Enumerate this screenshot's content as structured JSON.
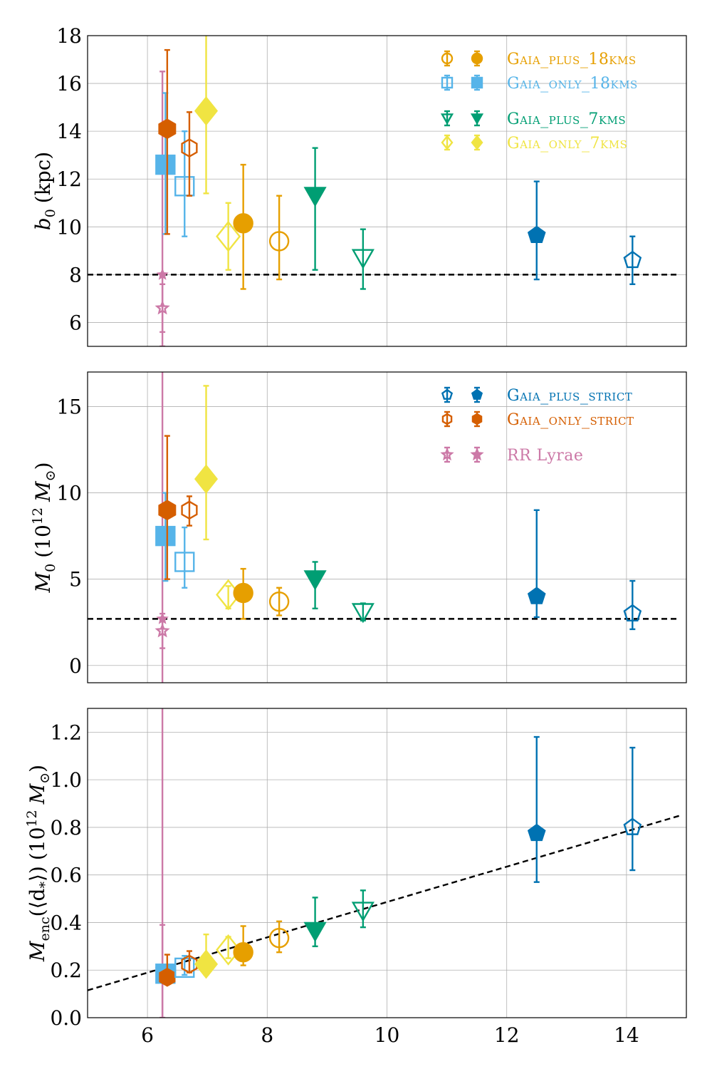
{
  "chart_data": [
    {
      "type": "scatter",
      "panel": "top",
      "ylabel_main": "b",
      "ylabel_sub": "0",
      "ylabel_unit": "(kpc)",
      "xlim": [
        5,
        15
      ],
      "ylim": [
        5,
        18
      ],
      "yticks": [
        6,
        8,
        10,
        12,
        14,
        16,
        18
      ],
      "reference_line": 8,
      "legend": [
        {
          "name": "GAIA_PLUS_18KMS",
          "label": "Gaia_plus_18kms",
          "color": "#E69F00",
          "marker": "circle"
        },
        {
          "name": "GAIA_ONLY_18KMS",
          "label": "Gaia_only_18kms",
          "color": "#56B4E9",
          "marker": "square"
        },
        {
          "name": "GAIA_PLUS_7KMS",
          "label": "Gaia_plus_7kms",
          "color": "#009E73",
          "marker": "triangle-down"
        },
        {
          "name": "GAIA_ONLY_7KMS",
          "label": "Gaia_only_7kms",
          "color": "#F0E442",
          "marker": "diamond"
        }
      ],
      "points": [
        {
          "series": "RR Lyrae",
          "filled": true,
          "marker": "star",
          "color": "#CC79A7",
          "x": 6.25,
          "y": 8.0,
          "lo": 5.0,
          "hi": 16.5,
          "size": 6
        },
        {
          "series": "RR Lyrae",
          "filled": false,
          "marker": "star",
          "color": "#CC79A7",
          "x": 6.25,
          "y": 6.6,
          "lo": 5.6,
          "hi": 7.6,
          "size": 8
        },
        {
          "series": "GAIA_ONLY_18KMS",
          "filled": true,
          "marker": "square",
          "color": "#56B4E9",
          "x": 6.3,
          "y": 12.6,
          "lo": 9.7,
          "hi": 15.6,
          "size": 13
        },
        {
          "series": "GAIA_ONLY_STRICT",
          "filled": true,
          "marker": "hexagon",
          "color": "#D55E00",
          "x": 6.33,
          "y": 14.1,
          "lo": 9.7,
          "hi": 17.4,
          "size": 13
        },
        {
          "series": "GAIA_ONLY_18KMS",
          "filled": false,
          "marker": "square",
          "color": "#56B4E9",
          "x": 6.62,
          "y": 11.7,
          "lo": 9.6,
          "hi": 14.0,
          "size": 13
        },
        {
          "series": "GAIA_ONLY_STRICT",
          "filled": false,
          "marker": "hexagon",
          "color": "#D55E00",
          "x": 6.7,
          "y": 13.3,
          "lo": 11.3,
          "hi": 14.8,
          "size": 12
        },
        {
          "series": "GAIA_ONLY_7KMS",
          "filled": true,
          "marker": "diamond",
          "color": "#F0E442",
          "x": 6.98,
          "y": 14.85,
          "lo": 11.4,
          "hi": 18.5,
          "size": 15
        },
        {
          "series": "GAIA_ONLY_7KMS",
          "filled": false,
          "marker": "diamond",
          "color": "#F0E442",
          "x": 7.35,
          "y": 9.6,
          "lo": 8.2,
          "hi": 11.0,
          "size": 16
        },
        {
          "series": "GAIA_PLUS_18KMS",
          "filled": true,
          "marker": "circle",
          "color": "#E69F00",
          "x": 7.6,
          "y": 10.15,
          "lo": 7.4,
          "hi": 12.6,
          "size": 13
        },
        {
          "series": "GAIA_PLUS_18KMS",
          "filled": false,
          "marker": "circle",
          "color": "#E69F00",
          "x": 8.2,
          "y": 9.4,
          "lo": 7.8,
          "hi": 11.3,
          "size": 13
        },
        {
          "series": "GAIA_PLUS_7KMS",
          "filled": true,
          "marker": "triangle-down",
          "color": "#009E73",
          "x": 8.8,
          "y": 11.3,
          "lo": 8.2,
          "hi": 13.3,
          "size": 14
        },
        {
          "series": "GAIA_PLUS_7KMS",
          "filled": false,
          "marker": "triangle-down",
          "color": "#009E73",
          "x": 9.6,
          "y": 8.7,
          "lo": 7.4,
          "hi": 9.9,
          "size": 14
        },
        {
          "series": "GAIA_PLUS_STRICT",
          "filled": true,
          "marker": "pentagon",
          "color": "#0072B2",
          "x": 12.5,
          "y": 9.65,
          "lo": 7.8,
          "hi": 11.9,
          "size": 12
        },
        {
          "series": "GAIA_PLUS_STRICT",
          "filled": false,
          "marker": "pentagon",
          "color": "#0072B2",
          "x": 14.1,
          "y": 8.6,
          "lo": 7.6,
          "hi": 9.6,
          "size": 12
        }
      ]
    },
    {
      "type": "scatter",
      "panel": "middle",
      "ylabel_main": "M",
      "ylabel_sub": "0",
      "ylabel_unit_pre": "(10",
      "ylabel_sup": "12",
      "ylabel_unit_post": "M",
      "ylabel_unit_sub": "⊙",
      "xlim": [
        5,
        15
      ],
      "ylim": [
        -1,
        17
      ],
      "yticks": [
        0,
        5,
        10,
        15
      ],
      "reference_line": 2.7,
      "legend": [
        {
          "name": "GAIA_PLUS_STRICT",
          "label": "Gaia_plus_strict",
          "color": "#0072B2",
          "marker": "pentagon"
        },
        {
          "name": "GAIA_ONLY_STRICT",
          "label": "Gaia_only_strict",
          "color": "#D55E00",
          "marker": "hexagon"
        },
        {
          "name": "RR Lyrae",
          "label": "RR Lyrae",
          "color": "#CC79A7",
          "marker": "star",
          "plain": true
        }
      ],
      "points": [
        {
          "series": "RR Lyrae",
          "filled": true,
          "marker": "star",
          "color": "#CC79A7",
          "x": 6.25,
          "y": 2.7,
          "lo": -2.0,
          "hi": 18.0,
          "size": 6
        },
        {
          "series": "RR Lyrae",
          "filled": false,
          "marker": "star",
          "color": "#CC79A7",
          "x": 6.25,
          "y": 2.0,
          "lo": 1.0,
          "hi": 3.0,
          "size": 8
        },
        {
          "series": "GAIA_ONLY_18KMS",
          "filled": true,
          "marker": "square",
          "color": "#56B4E9",
          "x": 6.3,
          "y": 7.5,
          "lo": 4.9,
          "hi": 10.0,
          "size": 13
        },
        {
          "series": "GAIA_ONLY_STRICT",
          "filled": true,
          "marker": "hexagon",
          "color": "#D55E00",
          "x": 6.33,
          "y": 9.0,
          "lo": 5.0,
          "hi": 13.3,
          "size": 13
        },
        {
          "series": "GAIA_ONLY_18KMS",
          "filled": false,
          "marker": "square",
          "color": "#56B4E9",
          "x": 6.62,
          "y": 6.0,
          "lo": 4.5,
          "hi": 8.0,
          "size": 13
        },
        {
          "series": "GAIA_ONLY_STRICT",
          "filled": false,
          "marker": "hexagon",
          "color": "#D55E00",
          "x": 6.7,
          "y": 9.0,
          "lo": 8.1,
          "hi": 9.8,
          "size": 12
        },
        {
          "series": "GAIA_ONLY_7KMS",
          "filled": true,
          "marker": "diamond",
          "color": "#F0E442",
          "x": 6.98,
          "y": 10.8,
          "lo": 7.3,
          "hi": 16.2,
          "size": 15
        },
        {
          "series": "GAIA_ONLY_7KMS",
          "filled": false,
          "marker": "diamond",
          "color": "#F0E442",
          "x": 7.35,
          "y": 4.1,
          "lo": 3.3,
          "hi": 4.6,
          "size": 16
        },
        {
          "series": "GAIA_PLUS_18KMS",
          "filled": true,
          "marker": "circle",
          "color": "#E69F00",
          "x": 7.6,
          "y": 4.2,
          "lo": 2.7,
          "hi": 5.6,
          "size": 13
        },
        {
          "series": "GAIA_PLUS_18KMS",
          "filled": false,
          "marker": "circle",
          "color": "#E69F00",
          "x": 8.2,
          "y": 3.7,
          "lo": 2.9,
          "hi": 4.5,
          "size": 13
        },
        {
          "series": "GAIA_PLUS_7KMS",
          "filled": true,
          "marker": "triangle-down",
          "color": "#009E73",
          "x": 8.8,
          "y": 5.0,
          "lo": 3.3,
          "hi": 6.0,
          "size": 14
        },
        {
          "series": "GAIA_PLUS_7KMS",
          "filled": false,
          "marker": "triangle-down",
          "color": "#009E73",
          "x": 9.6,
          "y": 3.1,
          "lo": 2.6,
          "hi": 3.6,
          "size": 14
        },
        {
          "series": "GAIA_PLUS_STRICT",
          "filled": true,
          "marker": "pentagon",
          "color": "#0072B2",
          "x": 12.5,
          "y": 4.0,
          "lo": 2.8,
          "hi": 9.0,
          "size": 12
        },
        {
          "series": "GAIA_PLUS_STRICT",
          "filled": false,
          "marker": "pentagon",
          "color": "#0072B2",
          "x": 14.1,
          "y": 3.0,
          "lo": 2.1,
          "hi": 4.9,
          "size": 12
        }
      ]
    },
    {
      "type": "scatter",
      "panel": "bottom",
      "ylabel_main": "M",
      "ylabel_sub": "enc",
      "ylabel_arg": "(⟨d",
      "ylabel_arg_sub": "*",
      "ylabel_arg_close": "⟩)",
      "ylabel_unit_pre": "(10",
      "ylabel_sup": "12",
      "ylabel_unit_post": "M",
      "ylabel_unit_sub": "⊙",
      "xlim": [
        5,
        15
      ],
      "ylim": [
        0.0,
        1.3
      ],
      "yticks": [
        0.0,
        0.2,
        0.4,
        0.6,
        0.8,
        1.0,
        1.2
      ],
      "ytick_labels": [
        "0.0",
        "0.2",
        "0.4",
        "0.6",
        "0.8",
        "1.0",
        "1.2"
      ],
      "xticks": [
        6,
        8,
        10,
        12,
        14
      ],
      "reference_curve": {
        "x1": 5,
        "y1": 0.115,
        "x2": 14.9,
        "y2": 0.85
      },
      "points": [
        {
          "series": "RR Lyrae",
          "filled": true,
          "marker": "star",
          "color": "#CC79A7",
          "x": 6.25,
          "y": 0.2,
          "lo": -0.1,
          "hi": 1.4,
          "size": 6
        },
        {
          "series": "RR Lyrae",
          "filled": false,
          "marker": "star",
          "color": "#CC79A7",
          "x": 6.25,
          "y": 0.2,
          "lo": 0.0,
          "hi": 0.39,
          "size": 8
        },
        {
          "series": "GAIA_ONLY_18KMS",
          "filled": true,
          "marker": "square",
          "color": "#56B4E9",
          "x": 6.3,
          "y": 0.185,
          "lo": 0.16,
          "hi": 0.22,
          "size": 13
        },
        {
          "series": "GAIA_ONLY_STRICT",
          "filled": true,
          "marker": "hexagon",
          "color": "#D55E00",
          "x": 6.33,
          "y": 0.17,
          "lo": 0.14,
          "hi": 0.265,
          "size": 12
        },
        {
          "series": "GAIA_ONLY_18KMS",
          "filled": false,
          "marker": "square",
          "color": "#56B4E9",
          "x": 6.62,
          "y": 0.21,
          "lo": 0.18,
          "hi": 0.26,
          "size": 13
        },
        {
          "series": "GAIA_ONLY_STRICT",
          "filled": false,
          "marker": "hexagon",
          "color": "#D55E00",
          "x": 6.7,
          "y": 0.225,
          "lo": 0.19,
          "hi": 0.28,
          "size": 12
        },
        {
          "series": "GAIA_ONLY_7KMS",
          "filled": true,
          "marker": "diamond",
          "color": "#F0E442",
          "x": 6.98,
          "y": 0.225,
          "lo": 0.18,
          "hi": 0.35,
          "size": 15
        },
        {
          "series": "GAIA_ONLY_7KMS",
          "filled": false,
          "marker": "diamond",
          "color": "#F0E442",
          "x": 7.35,
          "y": 0.285,
          "lo": 0.25,
          "hi": 0.34,
          "size": 16
        },
        {
          "series": "GAIA_PLUS_18KMS",
          "filled": true,
          "marker": "circle",
          "color": "#E69F00",
          "x": 7.6,
          "y": 0.275,
          "lo": 0.22,
          "hi": 0.385,
          "size": 13
        },
        {
          "series": "GAIA_PLUS_18KMS",
          "filled": false,
          "marker": "circle",
          "color": "#E69F00",
          "x": 8.2,
          "y": 0.335,
          "lo": 0.275,
          "hi": 0.405,
          "size": 13
        },
        {
          "series": "GAIA_PLUS_7KMS",
          "filled": true,
          "marker": "triangle-down",
          "color": "#009E73",
          "x": 8.8,
          "y": 0.365,
          "lo": 0.3,
          "hi": 0.505,
          "size": 14
        },
        {
          "series": "GAIA_PLUS_7KMS",
          "filled": false,
          "marker": "triangle-down",
          "color": "#009E73",
          "x": 9.6,
          "y": 0.45,
          "lo": 0.38,
          "hi": 0.535,
          "size": 14
        },
        {
          "series": "GAIA_PLUS_STRICT",
          "filled": true,
          "marker": "pentagon",
          "color": "#0072B2",
          "x": 12.5,
          "y": 0.775,
          "lo": 0.57,
          "hi": 1.18,
          "size": 12
        },
        {
          "series": "GAIA_PLUS_STRICT",
          "filled": false,
          "marker": "pentagon",
          "color": "#0072B2",
          "x": 14.1,
          "y": 0.8,
          "lo": 0.62,
          "hi": 1.135,
          "size": 12
        }
      ]
    }
  ]
}
